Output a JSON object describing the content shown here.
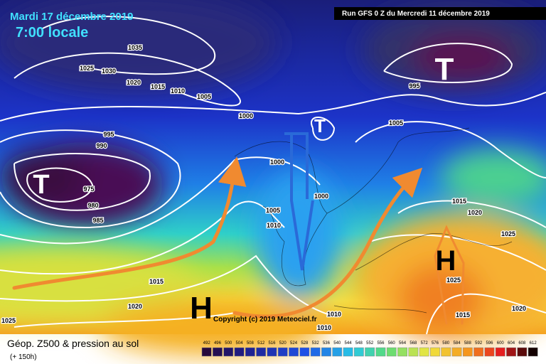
{
  "header": {
    "date": "Mardi 17 décembre 2019",
    "time": "7:00 locale",
    "run": "Run GFS 0 Z du Mercredi 11 décembre 2019"
  },
  "footer": {
    "title": "Géop. Z500 & pression au sol",
    "lead": "(+ 150h)",
    "copyright": "Copyright (c) 2019 Meteociel.fr"
  },
  "pressure_centers": [
    "T",
    "T",
    "T",
    "H",
    "H"
  ],
  "isobar_labels": [
    "1035",
    "1025",
    "1030",
    "1020",
    "1015",
    "1010",
    "1005",
    "1000",
    "995",
    "990",
    "975",
    "980",
    "985",
    "1000",
    "1000",
    "1005",
    "1010",
    "995",
    "1005",
    "1015",
    "1020",
    "1025",
    "1015",
    "1020",
    "1025",
    "1010",
    "1010",
    "1020",
    "1015",
    "1025"
  ],
  "colorbar": {
    "labels": [
      492,
      496,
      500,
      504,
      508,
      512,
      516,
      520,
      524,
      528,
      532,
      536,
      540,
      544,
      548,
      552,
      556,
      560,
      564,
      568,
      572,
      576,
      580,
      584,
      588,
      592,
      596,
      600,
      604,
      608,
      612
    ]
  }
}
